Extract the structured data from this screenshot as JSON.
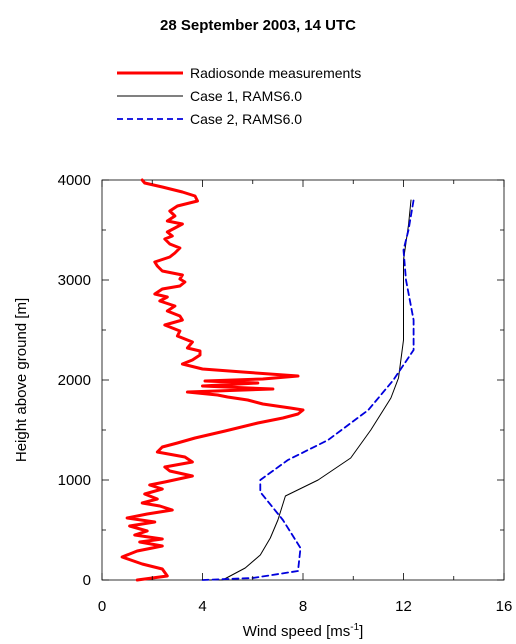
{
  "chart_data": {
    "type": "line",
    "title": "28 September 2003, 14 UTC",
    "xlabel": "Wind speed [ms",
    "xlabel_sup": "-1",
    "xlabel_end": "]",
    "ylabel": "Height above ground [m]",
    "xlim": [
      0,
      16
    ],
    "ylim": [
      0,
      4000
    ],
    "xticks": [
      0,
      4,
      8,
      12,
      16
    ],
    "yticks": [
      0,
      1000,
      2000,
      3000,
      4000
    ],
    "legend_position": "top",
    "series": [
      {
        "name": "Radiosonde measurements",
        "color": "#ff0000",
        "style": "solid-thick",
        "points": [
          [
            1.4,
            0
          ],
          [
            2.6,
            40
          ],
          [
            2.4,
            110
          ],
          [
            1.6,
            160
          ],
          [
            0.8,
            230
          ],
          [
            1.4,
            290
          ],
          [
            2.4,
            340
          ],
          [
            1.5,
            380
          ],
          [
            2.4,
            410
          ],
          [
            1.3,
            450
          ],
          [
            1.8,
            490
          ],
          [
            1.1,
            540
          ],
          [
            2.1,
            580
          ],
          [
            1.0,
            620
          ],
          [
            1.8,
            660
          ],
          [
            2.8,
            700
          ],
          [
            2.3,
            740
          ],
          [
            1.6,
            770
          ],
          [
            2.2,
            810
          ],
          [
            1.7,
            860
          ],
          [
            2.4,
            910
          ],
          [
            1.9,
            950
          ],
          [
            2.5,
            980
          ],
          [
            3.6,
            1040
          ],
          [
            2.7,
            1090
          ],
          [
            2.5,
            1130
          ],
          [
            3.6,
            1180
          ],
          [
            3.3,
            1230
          ],
          [
            2.2,
            1280
          ],
          [
            2.4,
            1330
          ],
          [
            3.0,
            1370
          ],
          [
            3.7,
            1420
          ],
          [
            4.9,
            1490
          ],
          [
            6.2,
            1570
          ],
          [
            7.2,
            1620
          ],
          [
            7.8,
            1660
          ],
          [
            8.0,
            1700
          ],
          [
            7.5,
            1720
          ],
          [
            6.4,
            1760
          ],
          [
            5.8,
            1800
          ],
          [
            5.0,
            1830
          ],
          [
            4.6,
            1850
          ],
          [
            3.4,
            1880
          ],
          [
            6.8,
            1910
          ],
          [
            4.0,
            1940
          ],
          [
            6.2,
            1970
          ],
          [
            4.1,
            1990
          ],
          [
            6.4,
            2010
          ],
          [
            7.8,
            2040
          ],
          [
            5.6,
            2080
          ],
          [
            4.0,
            2110
          ],
          [
            3.2,
            2160
          ],
          [
            3.6,
            2200
          ],
          [
            3.9,
            2250
          ],
          [
            3.9,
            2290
          ],
          [
            3.4,
            2320
          ],
          [
            3.6,
            2380
          ],
          [
            3.0,
            2440
          ],
          [
            3.1,
            2490
          ],
          [
            2.5,
            2550
          ],
          [
            3.2,
            2600
          ],
          [
            3.1,
            2640
          ],
          [
            2.6,
            2690
          ],
          [
            2.9,
            2740
          ],
          [
            2.3,
            2790
          ],
          [
            2.6,
            2830
          ],
          [
            2.1,
            2860
          ],
          [
            2.4,
            2910
          ],
          [
            3.1,
            2940
          ],
          [
            3.3,
            2980
          ],
          [
            3.1,
            3010
          ],
          [
            3.2,
            3050
          ],
          [
            2.4,
            3090
          ],
          [
            2.2,
            3140
          ],
          [
            2.1,
            3180
          ],
          [
            2.7,
            3230
          ],
          [
            2.9,
            3270
          ],
          [
            3.1,
            3320
          ],
          [
            2.7,
            3360
          ],
          [
            2.5,
            3410
          ],
          [
            2.8,
            3440
          ],
          [
            2.6,
            3480
          ],
          [
            2.9,
            3520
          ],
          [
            3.2,
            3560
          ],
          [
            2.6,
            3590
          ],
          [
            2.9,
            3640
          ],
          [
            2.7,
            3690
          ],
          [
            3.0,
            3740
          ],
          [
            3.8,
            3790
          ],
          [
            3.7,
            3840
          ],
          [
            3.2,
            3880
          ],
          [
            2.4,
            3930
          ],
          [
            1.7,
            3970
          ],
          [
            1.6,
            4000
          ]
        ]
      },
      {
        "name": "Case 1, RAMS6.0",
        "color": "#000000",
        "style": "solid-thin",
        "points": [
          [
            4.0,
            0
          ],
          [
            4.8,
            0
          ],
          [
            5.7,
            120
          ],
          [
            6.3,
            250
          ],
          [
            6.7,
            420
          ],
          [
            7.0,
            600
          ],
          [
            7.3,
            840
          ],
          [
            8.6,
            1000
          ],
          [
            9.9,
            1220
          ],
          [
            10.7,
            1500
          ],
          [
            11.5,
            1820
          ],
          [
            11.8,
            2020
          ],
          [
            12.0,
            2400
          ],
          [
            12.0,
            2800
          ],
          [
            12.0,
            3200
          ],
          [
            12.2,
            3550
          ],
          [
            12.3,
            3800
          ]
        ]
      },
      {
        "name": "Case 2, RAMS6.0",
        "color": "#0000dd",
        "style": "dashed",
        "points": [
          [
            4.0,
            0
          ],
          [
            6.0,
            20
          ],
          [
            7.8,
            90
          ],
          [
            7.9,
            320
          ],
          [
            7.2,
            600
          ],
          [
            6.3,
            880
          ],
          [
            6.3,
            1000
          ],
          [
            7.4,
            1200
          ],
          [
            9.0,
            1400
          ],
          [
            10.6,
            1700
          ],
          [
            11.6,
            2000
          ],
          [
            12.4,
            2300
          ],
          [
            12.4,
            2600
          ],
          [
            12.1,
            3000
          ],
          [
            12.0,
            3300
          ],
          [
            12.2,
            3500
          ],
          [
            12.4,
            3800
          ]
        ]
      }
    ]
  }
}
